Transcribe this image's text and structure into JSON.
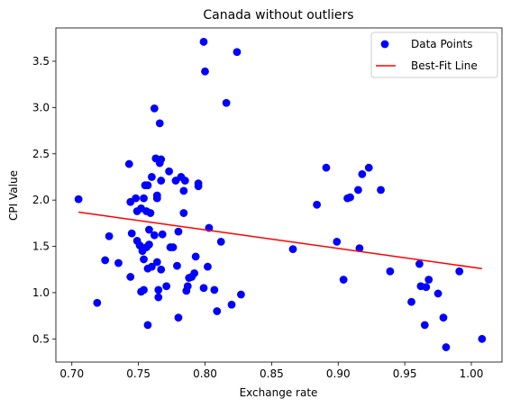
{
  "chart_data": {
    "type": "scatter",
    "title": "Canada without outliers",
    "xlabel": "Exchange rate",
    "ylabel": "CPI Value",
    "xlim": [
      0.688,
      1.023
    ],
    "ylim": [
      0.25,
      3.86
    ],
    "xticks": [
      "0.70",
      "0.75",
      "0.80",
      "0.85",
      "0.90",
      "0.95",
      "1.00"
    ],
    "xtick_values": [
      0.7,
      0.75,
      0.8,
      0.85,
      0.9,
      0.95,
      1.0
    ],
    "yticks": [
      "0.5",
      "1.0",
      "1.5",
      "2.0",
      "2.5",
      "3.0",
      "3.5"
    ],
    "ytick_values": [
      0.5,
      1.0,
      1.5,
      2.0,
      2.5,
      3.0,
      3.5
    ],
    "grid": false,
    "legend_position": "top-right",
    "series": [
      {
        "name": "Data Points",
        "kind": "scatter",
        "color": "#0000ff",
        "points": [
          [
            0.705,
            2.01
          ],
          [
            0.719,
            0.89
          ],
          [
            0.725,
            1.35
          ],
          [
            0.728,
            1.61
          ],
          [
            0.735,
            1.32
          ],
          [
            0.743,
            2.39
          ],
          [
            0.744,
            1.98
          ],
          [
            0.744,
            1.17
          ],
          [
            0.745,
            1.64
          ],
          [
            0.748,
            2.02
          ],
          [
            0.749,
            1.88
          ],
          [
            0.749,
            1.56
          ],
          [
            0.751,
            1.51
          ],
          [
            0.752,
            1.91
          ],
          [
            0.752,
            1.01
          ],
          [
            0.753,
            1.45
          ],
          [
            0.754,
            2.02
          ],
          [
            0.754,
            1.36
          ],
          [
            0.754,
            1.03
          ],
          [
            0.755,
            2.16
          ],
          [
            0.756,
            1.88
          ],
          [
            0.756,
            1.49
          ],
          [
            0.757,
            2.16
          ],
          [
            0.757,
            1.26
          ],
          [
            0.757,
            0.65
          ],
          [
            0.758,
            1.68
          ],
          [
            0.758,
            1.52
          ],
          [
            0.759,
            1.86
          ],
          [
            0.76,
            2.25
          ],
          [
            0.76,
            1.28
          ],
          [
            0.762,
            2.99
          ],
          [
            0.762,
            1.62
          ],
          [
            0.763,
            2.45
          ],
          [
            0.764,
            2.05
          ],
          [
            0.764,
            2.02
          ],
          [
            0.764,
            1.33
          ],
          [
            0.765,
            0.95
          ],
          [
            0.765,
            1.03
          ],
          [
            0.766,
            2.4
          ],
          [
            0.766,
            2.83
          ],
          [
            0.767,
            2.44
          ],
          [
            0.767,
            2.21
          ],
          [
            0.767,
            1.25
          ],
          [
            0.768,
            1.63
          ],
          [
            0.771,
            1.07
          ],
          [
            0.773,
            2.31
          ],
          [
            0.774,
            1.49
          ],
          [
            0.776,
            1.49
          ],
          [
            0.778,
            2.21
          ],
          [
            0.779,
            1.29
          ],
          [
            0.78,
            1.66
          ],
          [
            0.78,
            0.73
          ],
          [
            0.782,
            2.25
          ],
          [
            0.784,
            2.1
          ],
          [
            0.784,
            1.86
          ],
          [
            0.785,
            2.21
          ],
          [
            0.786,
            1.02
          ],
          [
            0.787,
            1.07
          ],
          [
            0.788,
            1.16
          ],
          [
            0.79,
            1.17
          ],
          [
            0.792,
            1.21
          ],
          [
            0.793,
            1.39
          ],
          [
            0.795,
            2.18
          ],
          [
            0.795,
            2.15
          ],
          [
            0.799,
            3.71
          ],
          [
            0.799,
            1.05
          ],
          [
            0.8,
            3.39
          ],
          [
            0.802,
            1.28
          ],
          [
            0.803,
            1.7
          ],
          [
            0.807,
            1.03
          ],
          [
            0.809,
            0.8
          ],
          [
            0.812,
            1.55
          ],
          [
            0.816,
            3.05
          ],
          [
            0.82,
            0.87
          ],
          [
            0.824,
            3.6
          ],
          [
            0.827,
            0.98
          ],
          [
            0.866,
            1.47
          ],
          [
            0.884,
            1.95
          ],
          [
            0.891,
            2.35
          ],
          [
            0.899,
            1.55
          ],
          [
            0.904,
            1.14
          ],
          [
            0.907,
            2.02
          ],
          [
            0.909,
            2.03
          ],
          [
            0.915,
            2.11
          ],
          [
            0.916,
            1.48
          ],
          [
            0.918,
            2.28
          ],
          [
            0.923,
            2.35
          ],
          [
            0.932,
            2.11
          ],
          [
            0.939,
            1.23
          ],
          [
            0.955,
            0.9
          ],
          [
            0.961,
            1.31
          ],
          [
            0.962,
            1.07
          ],
          [
            0.965,
            0.65
          ],
          [
            0.966,
            1.06
          ],
          [
            0.968,
            1.14
          ],
          [
            0.975,
            0.99
          ],
          [
            0.979,
            0.73
          ],
          [
            0.981,
            0.41
          ],
          [
            0.991,
            1.23
          ],
          [
            1.008,
            0.5
          ]
        ]
      },
      {
        "name": "Best-Fit Line",
        "kind": "line",
        "color": "#ff0000",
        "points": [
          [
            0.705,
            1.87
          ],
          [
            1.008,
            1.26
          ]
        ]
      }
    ]
  }
}
